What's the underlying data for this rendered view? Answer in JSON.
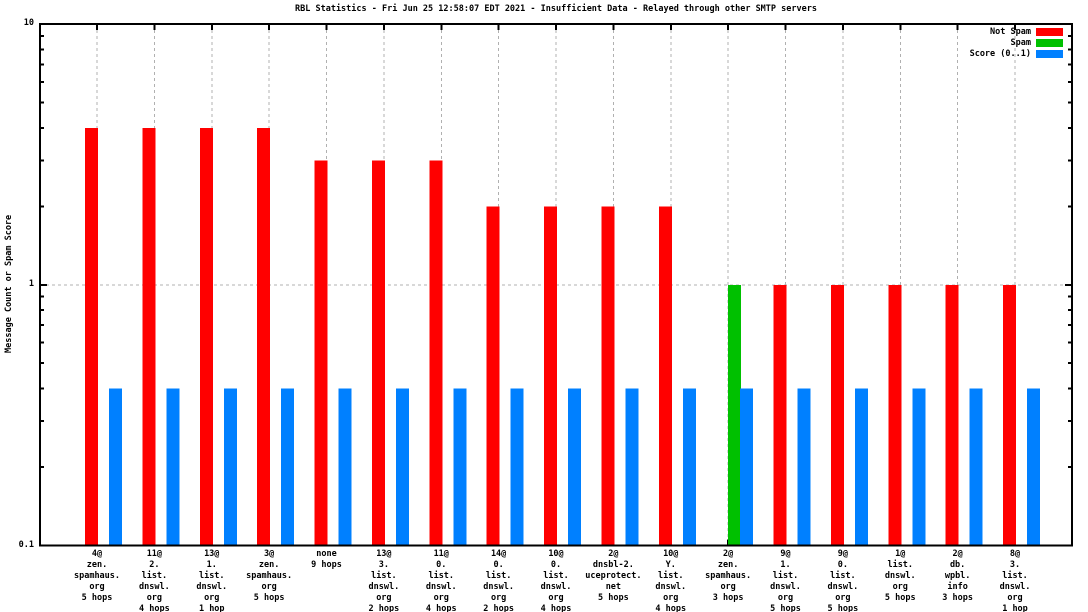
{
  "chart_data": {
    "type": "bar",
    "title": "RBL Statistics - Fri Jun 25 12:58:07 EDT 2021 - Insufficient Data - Relayed through other SMTP servers",
    "ylabel": "Message Count or Spam Score",
    "yscale": "log",
    "ylim": [
      0.1,
      10
    ],
    "yticks": [
      {
        "value": 10,
        "label": "10"
      },
      {
        "value": 1,
        "label": "1"
      },
      {
        "value": 0.1,
        "label": "0.1"
      }
    ],
    "grid": {
      "vertical_dashed_at_each_group": true,
      "horizontal_dashed_at": 1,
      "grid_color": "#b0b0b0"
    },
    "legend_position": "top-right",
    "categories": [
      [
        "4@",
        "zen.",
        "spamhaus.",
        "org",
        "5 hops"
      ],
      [
        "11@",
        "2.",
        "list.",
        "dnswl.",
        "org",
        "4 hops"
      ],
      [
        "13@",
        "1.",
        "list.",
        "dnswl.",
        "org",
        "1 hop"
      ],
      [
        "3@",
        "zen.",
        "spamhaus.",
        "org",
        "5 hops"
      ],
      [
        "none",
        "9 hops"
      ],
      [
        "13@",
        "3.",
        "list.",
        "dnswl.",
        "org",
        "2 hops"
      ],
      [
        "11@",
        "0.",
        "list.",
        "dnswl.",
        "org",
        "4 hops"
      ],
      [
        "14@",
        "0.",
        "list.",
        "dnswl.",
        "org",
        "2 hops"
      ],
      [
        "10@",
        "0.",
        "list.",
        "dnswl.",
        "org",
        "4 hops"
      ],
      [
        "2@",
        "dnsbl-2.",
        "uceprotect.",
        "net",
        "5 hops"
      ],
      [
        "10@",
        "Y.",
        "list.",
        "dnswl.",
        "org",
        "4 hops"
      ],
      [
        "2@",
        "zen.",
        "spamhaus.",
        "org",
        "3 hops"
      ],
      [
        "9@",
        "1.",
        "list.",
        "dnswl.",
        "org",
        "5 hops"
      ],
      [
        "9@",
        "0.",
        "list.",
        "dnswl.",
        "org",
        "5 hops"
      ],
      [
        "1@",
        "list.",
        "dnswl.",
        "org",
        "5 hops"
      ],
      [
        "2@",
        "db.",
        "wpbl.",
        "info",
        "3 hops"
      ],
      [
        "8@",
        "3.",
        "list.",
        "dnswl.",
        "org",
        "1 hop"
      ]
    ],
    "series": [
      {
        "name": "Not Spam",
        "color": "#ff0000",
        "values": [
          4,
          4,
          4,
          4,
          3,
          3,
          3,
          2,
          2,
          2,
          2,
          null,
          1,
          1,
          1,
          1,
          1
        ]
      },
      {
        "name": "Spam",
        "color": "#00c000",
        "values": [
          null,
          null,
          null,
          null,
          null,
          null,
          null,
          null,
          null,
          null,
          null,
          1,
          null,
          null,
          null,
          null,
          null
        ]
      },
      {
        "name": "Score (0..1)",
        "color": "#0080ff",
        "values": [
          0.4,
          0.4,
          0.4,
          0.4,
          0.4,
          0.4,
          0.4,
          0.4,
          0.4,
          0.4,
          0.4,
          0.4,
          0.4,
          0.4,
          0.4,
          0.4,
          0.4
        ]
      }
    ]
  }
}
